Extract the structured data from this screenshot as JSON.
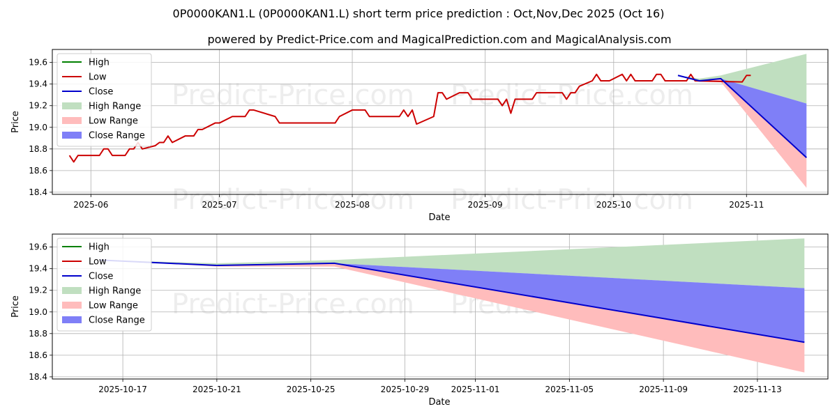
{
  "title": "0P0000KAN1.L (0P0000KAN1.L) short term price prediction : Oct,Nov,Dec 2025 (Oct 16)",
  "subtitle": "powered by Predict-Price.com and MagicalPrediction.com and MagicalAnalysis.com",
  "watermark": "Predict-Price.com",
  "colors": {
    "high": "#008000",
    "low": "#cc0000",
    "close": "#0000cc",
    "high_range": "#c0dfc0",
    "low_range": "#ffbcbc",
    "close_range": "#7f7ff7",
    "grid": "#b0b0b0",
    "watermark": "#ededed"
  },
  "chart_data": [
    {
      "type": "line",
      "xlabel": "Date",
      "ylabel": "Price",
      "ylim": [
        18.38,
        19.72
      ],
      "yticks": [
        18.4,
        18.6,
        18.8,
        19.0,
        19.2,
        19.4,
        19.6
      ],
      "xlim": [
        "2025-05-23",
        "2025-11-20"
      ],
      "xticks": [
        {
          "date": "2025-06-01",
          "label": "2025-06"
        },
        {
          "date": "2025-07-01",
          "label": "2025-07"
        },
        {
          "date": "2025-08-01",
          "label": "2025-08"
        },
        {
          "date": "2025-09-01",
          "label": "2025-09"
        },
        {
          "date": "2025-10-01",
          "label": "2025-10"
        },
        {
          "date": "2025-11-01",
          "label": "2025-11"
        }
      ],
      "grid": true,
      "legend_position": "top-left",
      "legend": [
        "High",
        "Low",
        "Close",
        "High Range",
        "Low Range",
        "Close Range"
      ],
      "history": {
        "name": "Low",
        "points": [
          [
            "2025-05-27",
            18.74
          ],
          [
            "2025-05-28",
            18.68
          ],
          [
            "2025-05-29",
            18.74
          ],
          [
            "2025-05-30",
            18.74
          ],
          [
            "2025-06-02",
            18.74
          ],
          [
            "2025-06-03",
            18.74
          ],
          [
            "2025-06-04",
            18.8
          ],
          [
            "2025-06-05",
            18.8
          ],
          [
            "2025-06-06",
            18.74
          ],
          [
            "2025-06-09",
            18.74
          ],
          [
            "2025-06-10",
            18.8
          ],
          [
            "2025-06-11",
            18.8
          ],
          [
            "2025-06-12",
            18.86
          ],
          [
            "2025-06-13",
            18.8
          ],
          [
            "2025-06-16",
            18.83
          ],
          [
            "2025-06-17",
            18.86
          ],
          [
            "2025-06-18",
            18.86
          ],
          [
            "2025-06-19",
            18.92
          ],
          [
            "2025-06-20",
            18.86
          ],
          [
            "2025-06-23",
            18.92
          ],
          [
            "2025-06-24",
            18.92
          ],
          [
            "2025-06-25",
            18.92
          ],
          [
            "2025-06-26",
            18.98
          ],
          [
            "2025-06-27",
            18.98
          ],
          [
            "2025-06-30",
            19.04
          ],
          [
            "2025-07-01",
            19.04
          ],
          [
            "2025-07-04",
            19.1
          ],
          [
            "2025-07-07",
            19.1
          ],
          [
            "2025-07-08",
            19.16
          ],
          [
            "2025-07-09",
            19.16
          ],
          [
            "2025-07-14",
            19.1
          ],
          [
            "2025-07-15",
            19.04
          ],
          [
            "2025-07-28",
            19.04
          ],
          [
            "2025-07-29",
            19.1
          ],
          [
            "2025-08-01",
            19.16
          ],
          [
            "2025-08-04",
            19.16
          ],
          [
            "2025-08-05",
            19.1
          ],
          [
            "2025-08-12",
            19.1
          ],
          [
            "2025-08-13",
            19.16
          ],
          [
            "2025-08-14",
            19.1
          ],
          [
            "2025-08-15",
            19.16
          ],
          [
            "2025-08-16",
            19.03
          ],
          [
            "2025-08-20",
            19.1
          ],
          [
            "2025-08-21",
            19.32
          ],
          [
            "2025-08-22",
            19.32
          ],
          [
            "2025-08-23",
            19.26
          ],
          [
            "2025-08-26",
            19.32
          ],
          [
            "2025-08-28",
            19.32
          ],
          [
            "2025-08-29",
            19.26
          ],
          [
            "2025-09-04",
            19.26
          ],
          [
            "2025-09-05",
            19.2
          ],
          [
            "2025-09-06",
            19.26
          ],
          [
            "2025-09-07",
            19.13
          ],
          [
            "2025-09-08",
            19.26
          ],
          [
            "2025-09-11",
            19.26
          ],
          [
            "2025-09-12",
            19.26
          ],
          [
            "2025-09-13",
            19.32
          ],
          [
            "2025-09-19",
            19.32
          ],
          [
            "2025-09-20",
            19.26
          ],
          [
            "2025-09-21",
            19.32
          ],
          [
            "2025-09-22",
            19.32
          ],
          [
            "2025-09-23",
            19.38
          ],
          [
            "2025-09-26",
            19.43
          ],
          [
            "2025-09-27",
            19.49
          ],
          [
            "2025-09-28",
            19.43
          ],
          [
            "2025-09-30",
            19.43
          ],
          [
            "2025-10-03",
            19.49
          ],
          [
            "2025-10-04",
            19.43
          ],
          [
            "2025-10-05",
            19.49
          ],
          [
            "2025-10-06",
            19.43
          ],
          [
            "2025-10-10",
            19.43
          ],
          [
            "2025-10-11",
            19.49
          ],
          [
            "2025-10-12",
            19.49
          ],
          [
            "2025-10-13",
            19.43
          ],
          [
            "2025-10-18",
            19.43
          ],
          [
            "2025-10-19",
            19.49
          ],
          [
            "2025-10-20",
            19.43
          ],
          [
            "2025-10-31",
            19.42
          ],
          [
            "2025-11-01",
            19.48
          ],
          [
            "2025-11-02",
            19.48
          ]
        ]
      },
      "prediction_anchor": "2025-10-16"
    },
    {
      "type": "line",
      "xlabel": "Date",
      "ylabel": "Price",
      "ylim": [
        18.38,
        19.72
      ],
      "yticks": [
        18.4,
        18.6,
        18.8,
        19.0,
        19.2,
        19.4,
        19.6
      ],
      "xlim": [
        "2025-10-14",
        "2025-11-16"
      ],
      "xticks": [
        {
          "date": "2025-10-17",
          "label": "2025-10-17"
        },
        {
          "date": "2025-10-21",
          "label": "2025-10-21"
        },
        {
          "date": "2025-10-25",
          "label": "2025-10-25"
        },
        {
          "date": "2025-10-29",
          "label": "2025-10-29"
        },
        {
          "date": "2025-11-01",
          "label": "2025-11-01"
        },
        {
          "date": "2025-11-05",
          "label": "2025-11-05"
        },
        {
          "date": "2025-11-09",
          "label": "2025-11-09"
        },
        {
          "date": "2025-11-13",
          "label": "2025-11-13"
        }
      ],
      "grid": true,
      "legend_position": "top-left",
      "legend": [
        "High",
        "Low",
        "Close",
        "High Range",
        "Low Range",
        "Close Range"
      ],
      "forecast": {
        "dates": [
          "2025-10-16",
          "2025-10-21",
          "2025-10-26",
          "2025-11-15"
        ],
        "close": [
          19.48,
          19.43,
          19.45,
          18.72
        ],
        "high_upper": [
          19.48,
          19.45,
          19.48,
          19.68
        ],
        "close_upper": [
          19.48,
          19.43,
          19.45,
          19.22
        ],
        "low_lower": [
          19.48,
          19.42,
          19.42,
          18.44
        ]
      }
    }
  ]
}
